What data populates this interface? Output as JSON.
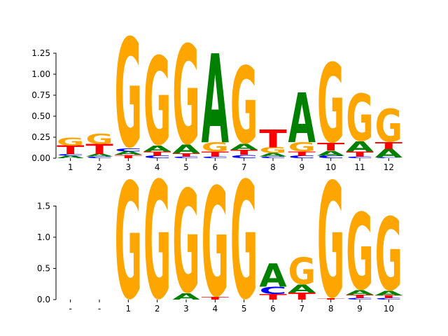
{
  "chart_data": [
    {
      "type": "sequence-logo",
      "title": "",
      "xlabel": "",
      "ylabel": "",
      "ylim": [
        0,
        1.45
      ],
      "yticks": [
        "0.00",
        "0.25",
        "0.50",
        "0.75",
        "1.00",
        "1.25"
      ],
      "ytick_values": [
        0,
        0.25,
        0.5,
        0.75,
        1.0,
        1.25
      ],
      "xtick_labels": [
        "1",
        "2",
        "3",
        "4",
        "5",
        "6",
        "7",
        "8",
        "9",
        "10",
        "11",
        "12"
      ],
      "positions": [
        [
          {
            "base": "A",
            "height": 0.03
          },
          {
            "base": "C",
            "height": 0.02
          },
          {
            "base": "T",
            "height": 0.1
          },
          {
            "base": "G",
            "height": 0.1
          }
        ],
        [
          {
            "base": "C",
            "height": 0.02
          },
          {
            "base": "A",
            "height": 0.03
          },
          {
            "base": "T",
            "height": 0.12
          },
          {
            "base": "G",
            "height": 0.12
          }
        ],
        [
          {
            "base": "T",
            "height": 0.04
          },
          {
            "base": "A",
            "height": 0.04
          },
          {
            "base": "C",
            "height": 0.04
          },
          {
            "base": "G",
            "height": 1.32
          }
        ],
        [
          {
            "base": "C",
            "height": 0.03
          },
          {
            "base": "T",
            "height": 0.05
          },
          {
            "base": "A",
            "height": 0.07
          },
          {
            "base": "G",
            "height": 1.07
          }
        ],
        [
          {
            "base": "C",
            "height": 0.02
          },
          {
            "base": "T",
            "height": 0.04
          },
          {
            "base": "A",
            "height": 0.1
          },
          {
            "base": "G",
            "height": 1.2
          }
        ],
        [
          {
            "base": "C",
            "height": 0.02
          },
          {
            "base": "T",
            "height": 0.06
          },
          {
            "base": "G",
            "height": 0.11
          },
          {
            "base": "A",
            "height": 1.06
          }
        ],
        [
          {
            "base": "C",
            "height": 0.04
          },
          {
            "base": "T",
            "height": 0.06
          },
          {
            "base": "A",
            "height": 0.07
          },
          {
            "base": "G",
            "height": 0.93
          }
        ],
        [
          {
            "base": "C",
            "height": 0.02
          },
          {
            "base": "A",
            "height": 0.04
          },
          {
            "base": "G",
            "height": 0.07
          },
          {
            "base": "T",
            "height": 0.21
          }
        ],
        [
          {
            "base": "C",
            "height": 0.03
          },
          {
            "base": "T",
            "height": 0.05
          },
          {
            "base": "G",
            "height": 0.11
          },
          {
            "base": "A",
            "height": 0.59
          }
        ],
        [
          {
            "base": "C",
            "height": 0.03
          },
          {
            "base": "A",
            "height": 0.06
          },
          {
            "base": "T",
            "height": 0.09
          },
          {
            "base": "G",
            "height": 0.96
          }
        ],
        [
          {
            "base": "C",
            "height": 0.02
          },
          {
            "base": "T",
            "height": 0.06
          },
          {
            "base": "A",
            "height": 0.12
          },
          {
            "base": "G",
            "height": 0.57
          }
        ],
        [
          {
            "base": "C",
            "height": 0.01
          },
          {
            "base": "A",
            "height": 0.1
          },
          {
            "base": "T",
            "height": 0.08
          },
          {
            "base": "G",
            "height": 0.4
          }
        ]
      ]
    },
    {
      "type": "sequence-logo",
      "title": "",
      "xlabel": "",
      "ylabel": "",
      "ylim": [
        0,
        1.93
      ],
      "yticks": [
        "0.0",
        "0.5",
        "1.0",
        "1.5"
      ],
      "ytick_values": [
        0,
        0.5,
        1.0,
        1.5
      ],
      "xtick_labels": [
        "-",
        "-",
        "1",
        "2",
        "3",
        "4",
        "5",
        "6",
        "7",
        "8",
        "9",
        "10"
      ],
      "positions": [
        [],
        [],
        [
          {
            "base": "G",
            "height": 1.9
          }
        ],
        [
          {
            "base": "G",
            "height": 1.92
          }
        ],
        [
          {
            "base": "A",
            "height": 0.1
          },
          {
            "base": "G",
            "height": 1.68
          }
        ],
        [
          {
            "base": "T",
            "height": 0.04
          },
          {
            "base": "G",
            "height": 1.78
          }
        ],
        [
          {
            "base": "G",
            "height": 1.92
          }
        ],
        [
          {
            "base": "T",
            "height": 0.09
          },
          {
            "base": "C",
            "height": 0.12
          },
          {
            "base": "A",
            "height": 0.37
          }
        ],
        [
          {
            "base": "T",
            "height": 0.11
          },
          {
            "base": "A",
            "height": 0.13
          },
          {
            "base": "G",
            "height": 0.44
          }
        ],
        [
          {
            "base": "T",
            "height": 0.02
          },
          {
            "base": "G",
            "height": 1.88
          }
        ],
        [
          {
            "base": "C",
            "height": 0.03
          },
          {
            "base": "T",
            "height": 0.05
          },
          {
            "base": "A",
            "height": 0.07
          },
          {
            "base": "G",
            "height": 1.25
          }
        ],
        [
          {
            "base": "C",
            "height": 0.03
          },
          {
            "base": "T",
            "height": 0.04
          },
          {
            "base": "A",
            "height": 0.07
          },
          {
            "base": "G",
            "height": 1.19
          }
        ]
      ]
    }
  ],
  "colors": {
    "A": "#008000",
    "C": "#0000ff",
    "G": "#ffa500",
    "T": "#ff0000",
    "axis": "#000000"
  }
}
